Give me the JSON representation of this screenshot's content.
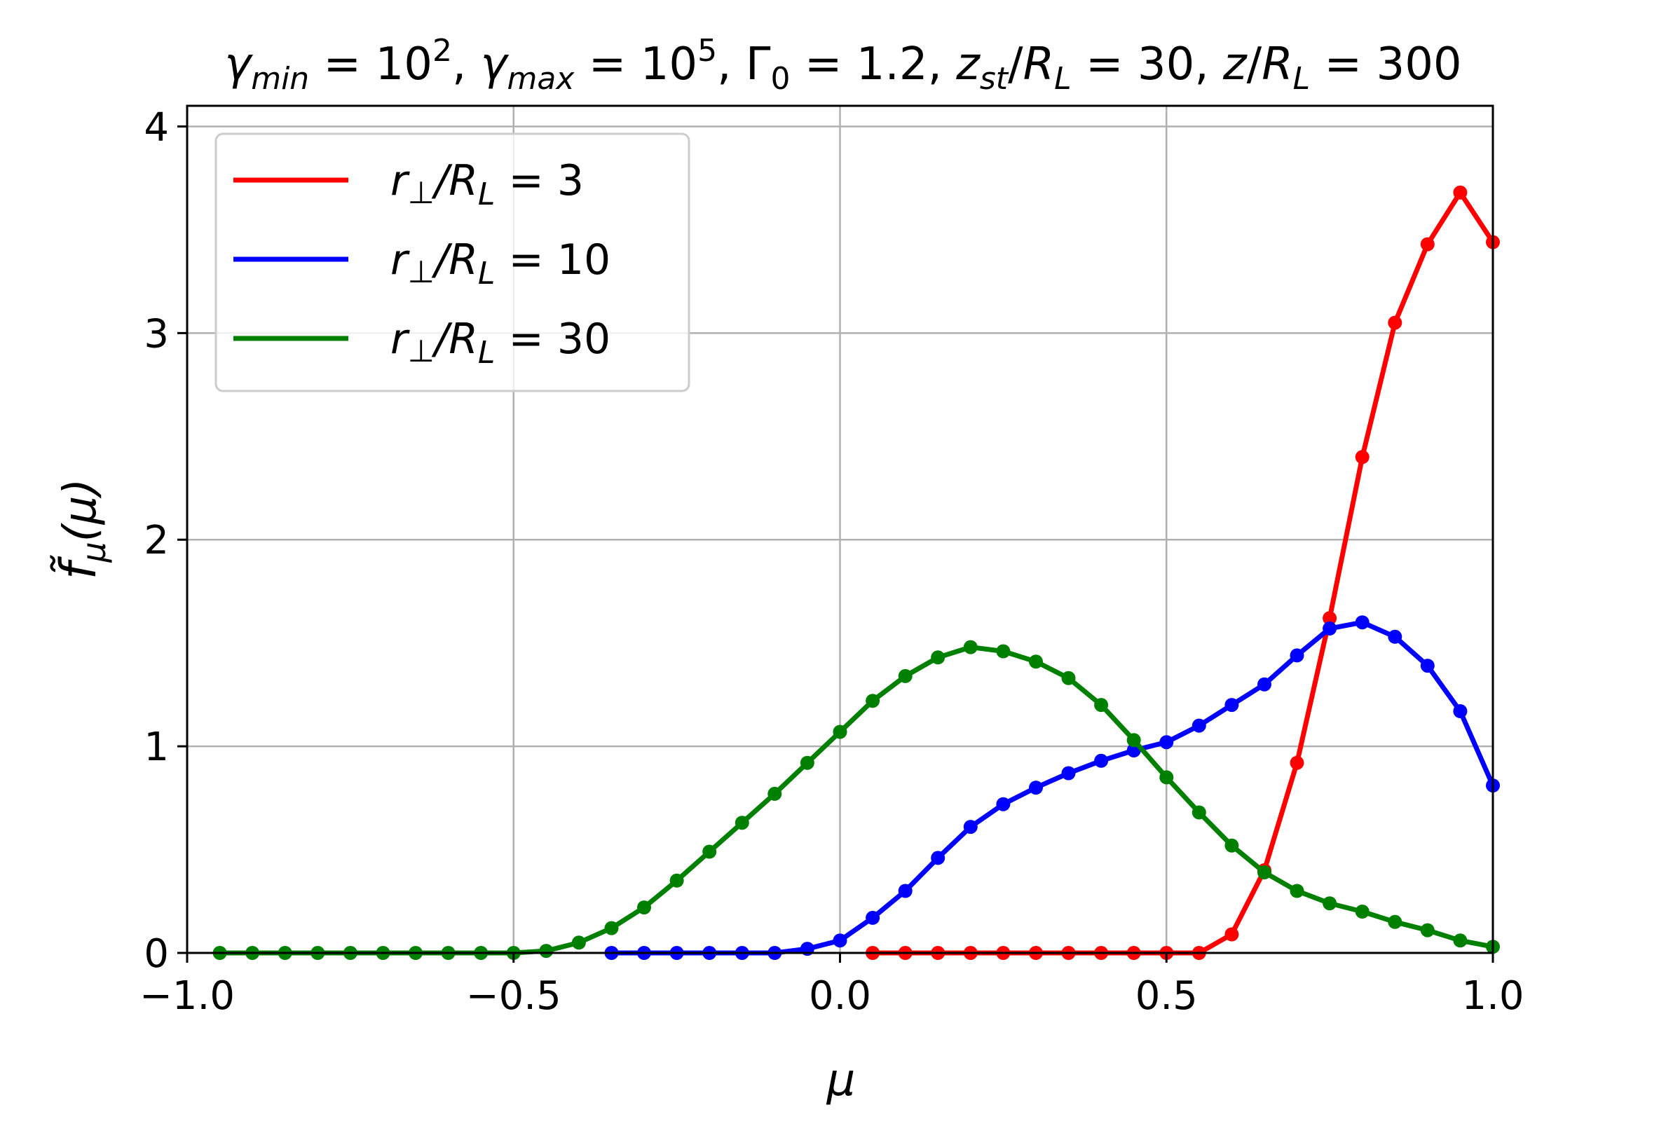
{
  "chart_data": {
    "type": "line",
    "title": "γ_min = 10², γ_max = 10⁵, Γ₀ = 1.2, z_st/R_L = 30, z/R_L = 300",
    "xlabel": "μ",
    "ylabel": "f̃_μ(μ)",
    "xlim": [
      -1.0,
      1.0
    ],
    "ylim": [
      0,
      4.1
    ],
    "xticks": [
      -1.0,
      -0.5,
      0.0,
      0.5,
      1.0
    ],
    "xtick_labels": [
      "−1.0",
      "−0.5",
      "0.0",
      "0.5",
      "1.0"
    ],
    "yticks": [
      0,
      1,
      2,
      3,
      4
    ],
    "ytick_labels": [
      "0",
      "1",
      "2",
      "3",
      "4"
    ],
    "grid": true,
    "legend_position": "upper-left",
    "series": [
      {
        "name": "r⊥/R_L = 3",
        "color": "#ff0000",
        "x": [
          0.05,
          0.1,
          0.15,
          0.2,
          0.25,
          0.3,
          0.35,
          0.4,
          0.45,
          0.5,
          0.55,
          0.6,
          0.65,
          0.7,
          0.75,
          0.8,
          0.85,
          0.9,
          0.95,
          1.0
        ],
        "y": [
          0.0,
          0.0,
          0.0,
          0.0,
          0.0,
          0.0,
          0.0,
          0.0,
          0.0,
          0.0,
          0.0,
          0.09,
          0.4,
          0.92,
          1.62,
          2.4,
          3.05,
          3.43,
          3.68,
          3.44
        ]
      },
      {
        "name": "r⊥/R_L = 10",
        "color": "#0000ff",
        "x": [
          -0.35,
          -0.3,
          -0.25,
          -0.2,
          -0.15,
          -0.1,
          -0.05,
          0.0,
          0.05,
          0.1,
          0.15,
          0.2,
          0.25,
          0.3,
          0.35,
          0.4,
          0.45,
          0.5,
          0.55,
          0.6,
          0.65,
          0.7,
          0.75,
          0.8,
          0.85,
          0.9,
          0.95,
          1.0
        ],
        "y": [
          0.0,
          0.0,
          0.0,
          0.0,
          0.0,
          0.0,
          0.02,
          0.06,
          0.17,
          0.3,
          0.46,
          0.61,
          0.72,
          0.8,
          0.87,
          0.93,
          0.98,
          1.02,
          1.1,
          1.2,
          1.3,
          1.44,
          1.57,
          1.6,
          1.53,
          1.39,
          1.17,
          0.81
        ]
      },
      {
        "name": "r⊥/R_L = 30",
        "color": "#008000",
        "x": [
          -0.95,
          -0.9,
          -0.85,
          -0.8,
          -0.75,
          -0.7,
          -0.65,
          -0.6,
          -0.55,
          -0.5,
          -0.45,
          -0.4,
          -0.35,
          -0.3,
          -0.25,
          -0.2,
          -0.15,
          -0.1,
          -0.05,
          0.0,
          0.05,
          0.1,
          0.15,
          0.2,
          0.25,
          0.3,
          0.35,
          0.4,
          0.45,
          0.5,
          0.55,
          0.6,
          0.65,
          0.7,
          0.75,
          0.8,
          0.85,
          0.9,
          0.95,
          1.0
        ],
        "y": [
          0.0,
          0.0,
          0.0,
          0.0,
          0.0,
          0.0,
          0.0,
          0.0,
          0.0,
          0.0,
          0.01,
          0.05,
          0.12,
          0.22,
          0.35,
          0.49,
          0.63,
          0.77,
          0.92,
          1.07,
          1.22,
          1.34,
          1.43,
          1.48,
          1.46,
          1.41,
          1.33,
          1.2,
          1.03,
          0.85,
          0.68,
          0.52,
          0.39,
          0.3,
          0.24,
          0.2,
          0.15,
          0.11,
          0.06,
          0.03
        ]
      }
    ]
  }
}
